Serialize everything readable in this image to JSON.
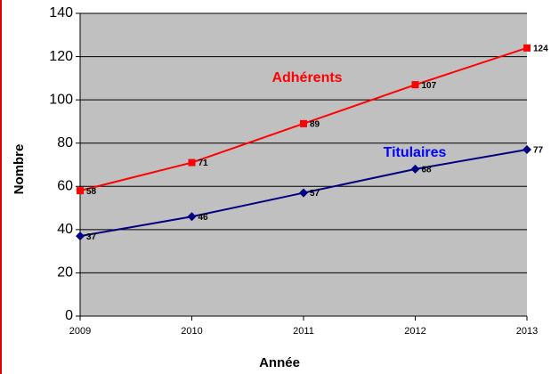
{
  "chart_data": {
    "type": "line",
    "x": [
      2009,
      2010,
      2011,
      2012,
      2013
    ],
    "xlim": [
      2009,
      2013
    ],
    "xticks": [
      2009,
      2010,
      2011,
      2012,
      2013
    ],
    "ylim": [
      0,
      140
    ],
    "yticks": [
      0,
      20,
      40,
      60,
      80,
      100,
      120,
      140
    ],
    "xlabel": "Année",
    "ylabel": "Nombre",
    "grid": true,
    "series": [
      {
        "name": "Adhérents",
        "color": "#ff0000",
        "marker": "square",
        "values": [
          58,
          71,
          89,
          107,
          124
        ]
      },
      {
        "name": "Titulaires",
        "color": "#000080",
        "marker": "diamond",
        "values": [
          37,
          46,
          57,
          68,
          77
        ]
      }
    ]
  }
}
